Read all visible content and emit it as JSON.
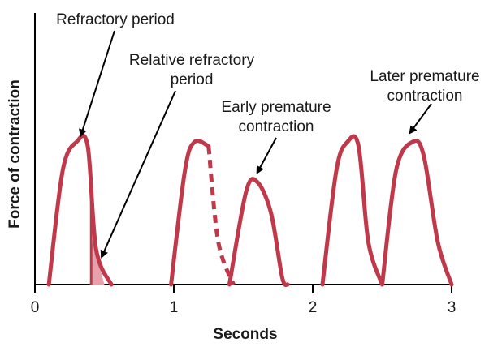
{
  "chart_data": {
    "type": "line",
    "title": "",
    "xlabel": "Seconds",
    "ylabel": "Force of contraction",
    "xlim": [
      0,
      3
    ],
    "x_ticks": [
      "0",
      "1",
      "2",
      "3"
    ],
    "y_ticks": [],
    "grid": false,
    "legend": "none",
    "colors": {
      "curve": "#c0394b",
      "fill": "#e8a0aa",
      "axis": "#000000",
      "arrow": "#000000"
    },
    "series": [
      {
        "name": "",
        "contractions": [
          {
            "label": "",
            "x": [
              0.1,
              0.2,
              0.3,
              0.38,
              0.44,
              0.55
            ],
            "y": [
              0,
              0.8,
              1,
              0.97,
              0.25,
              0
            ]
          },
          {
            "label": "",
            "x": [
              0.98,
              1.08,
              1.15,
              1.25,
              1.32,
              1.43
            ],
            "y": [
              0,
              0.8,
              1,
              0.97,
              0.3,
              0
            ]
          },
          {
            "label": "",
            "x": [
              1.4,
              1.52,
              1.6,
              1.7,
              1.78,
              1.82
            ],
            "y": [
              0,
              0.65,
              0.72,
              0.5,
              0.05,
              0
            ]
          },
          {
            "label": "",
            "x": [
              2.07,
              2.17,
              2.25,
              2.33,
              2.4,
              2.5
            ],
            "y": [
              0,
              0.8,
              1,
              0.97,
              0.3,
              0
            ]
          },
          {
            "label": "",
            "x": [
              2.5,
              2.6,
              2.72,
              2.8,
              2.9,
              3.0
            ],
            "y": [
              0,
              0.8,
              1,
              0.9,
              0.3,
              0
            ]
          }
        ]
      }
    ],
    "annotations": [
      {
        "lines": [
          "Refractory period"
        ],
        "points_to_x": 0.33,
        "points_to_y": 1.02
      },
      {
        "lines": [
          "Relative refractory",
          "period"
        ],
        "points_to_x": 0.48,
        "points_to_y": 0.17
      },
      {
        "lines": [
          "Early premature",
          "contraction"
        ],
        "points_to_x": 1.6,
        "points_to_y": 0.76
      },
      {
        "lines": [
          "Later premature",
          "contraction"
        ],
        "points_to_x": 2.7,
        "points_to_y": 1.04
      }
    ]
  }
}
